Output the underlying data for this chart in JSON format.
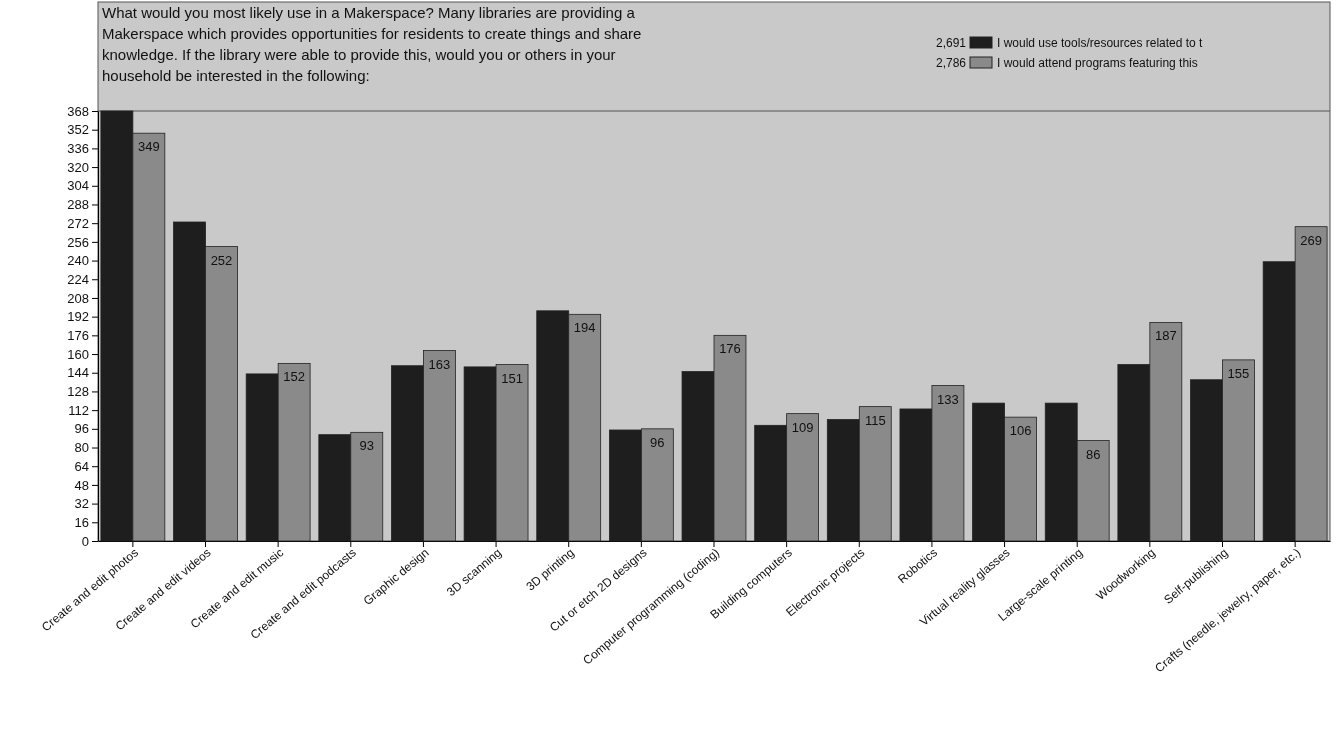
{
  "chart_data": {
    "type": "bar",
    "title": "What would you most likely use in a Makerspace?  Many libraries are providing a Makerspace which provides opportunities for residents to create things and share knowledge.  If the library were able to provide this, would you or others in your household be interested in the following:",
    "categories": [
      "Create and edit photos",
      "Create and edit videos",
      "Create and edit music",
      "Create and edit podcasts",
      "Graphic design",
      "3D scanning",
      "3D printing",
      "Cut or etch 2D designs",
      "Computer programming (coding)",
      "Building computers",
      "Electronic projects",
      "Robotics",
      "Virtual reality glasses",
      "Large-scale printing",
      "Woodworking",
      "Self-publishing",
      "Crafts (needle, jewelry, paper, etc.)"
    ],
    "series": [
      {
        "name": "I would use tools/resources related to t",
        "color": "#1e1e1e",
        "values": [
          368,
          273,
          143,
          91,
          150,
          149,
          197,
          95,
          145,
          99,
          104,
          113,
          118,
          118,
          151,
          138,
          239
        ]
      },
      {
        "name": "I would attend programs featuring this",
        "color": "#8a8a8a",
        "values": [
          349,
          252,
          152,
          93,
          163,
          151,
          194,
          96,
          176,
          109,
          115,
          133,
          106,
          86,
          187,
          155,
          269
        ],
        "value_labels": [
          "349",
          "252",
          "152",
          "93",
          "163",
          "151",
          "194",
          "96",
          "176",
          "109",
          "115",
          "133",
          "106",
          "86",
          "187",
          "155",
          "269"
        ]
      }
    ],
    "annotations": [
      "2,691",
      "2,786"
    ],
    "ylim": [
      0,
      368
    ],
    "yticks": [
      0,
      16,
      32,
      48,
      64,
      80,
      96,
      112,
      128,
      144,
      160,
      176,
      192,
      208,
      224,
      240,
      256,
      272,
      288,
      304,
      320,
      336,
      352,
      368
    ],
    "legend": "top right"
  }
}
